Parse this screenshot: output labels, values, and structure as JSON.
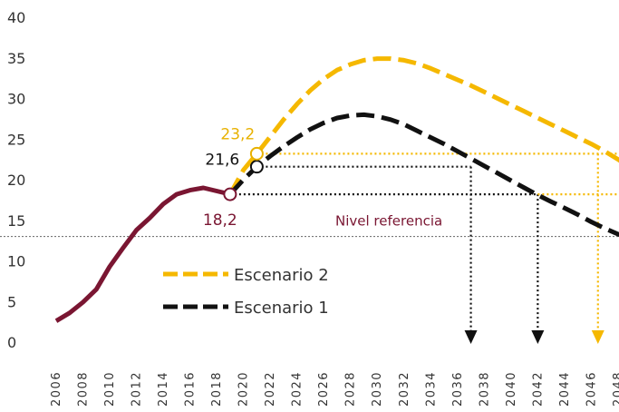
{
  "chart_data": {
    "type": "line",
    "title": "",
    "xlabel": "",
    "ylabel": "",
    "xlim": [
      2006,
      2049
    ],
    "ylim": [
      0,
      40
    ],
    "y_ticks": [
      "0",
      "5",
      "10",
      "15",
      "20",
      "25",
      "30",
      "35",
      "40"
    ],
    "x_ticks": [
      "2006",
      "2008",
      "2010",
      "2012",
      "2014",
      "2016",
      "2018",
      "2020",
      "2022",
      "2024",
      "2026",
      "2028",
      "2030",
      "2032",
      "2034",
      "2036",
      "2038",
      "2040",
      "2042",
      "2044",
      "2046",
      "2048"
    ],
    "grid": false,
    "legend_position": "lower-left",
    "series": [
      {
        "key": "historico",
        "style": "solid",
        "color": "#7a1632",
        "x": [
          2006,
          2007,
          2008,
          2009,
          2010,
          2011,
          2012,
          2013,
          2014,
          2015,
          2016,
          2017,
          2018,
          2019
        ],
        "values": [
          2.6,
          3.6,
          4.9,
          6.5,
          9.3,
          11.6,
          13.8,
          15.3,
          17.0,
          18.2,
          18.7,
          19.0,
          18.6,
          18.2
        ]
      },
      {
        "key": "escenario2",
        "name": "Escenario 2",
        "style": "dashed",
        "color": "#f5b800",
        "x": [
          2019,
          2020,
          2021,
          2022,
          2023,
          2024,
          2025,
          2026,
          2027,
          2028,
          2029,
          2030,
          2031,
          2032,
          2033,
          2034,
          2035,
          2036,
          2037,
          2038,
          2039,
          2040,
          2041,
          2042,
          2043,
          2044,
          2045,
          2046,
          2047,
          2048,
          2049
        ],
        "values": [
          18.2,
          21.2,
          23.2,
          25.3,
          27.4,
          29.3,
          31.0,
          32.4,
          33.5,
          34.2,
          34.7,
          34.9,
          34.9,
          34.7,
          34.3,
          33.7,
          33.0,
          32.3,
          31.6,
          30.8,
          30.0,
          29.2,
          28.4,
          27.6,
          26.8,
          26.0,
          25.2,
          24.4,
          23.5,
          22.5,
          21.4
        ]
      },
      {
        "key": "escenario1",
        "name": "Escenario 1",
        "style": "dashed",
        "color": "#111111",
        "x": [
          2019,
          2020,
          2021,
          2022,
          2023,
          2024,
          2025,
          2026,
          2027,
          2028,
          2029,
          2030,
          2031,
          2032,
          2033,
          2034,
          2035,
          2036,
          2037,
          2038,
          2039,
          2040,
          2041,
          2042,
          2043,
          2044,
          2045,
          2046,
          2047,
          2048,
          2049
        ],
        "values": [
          18.2,
          20.0,
          21.6,
          22.9,
          24.1,
          25.2,
          26.2,
          27.0,
          27.6,
          27.9,
          28.0,
          27.8,
          27.4,
          26.8,
          26.0,
          25.2,
          24.4,
          23.5,
          22.6,
          21.7,
          20.8,
          19.9,
          19.0,
          18.1,
          17.3,
          16.5,
          15.7,
          14.8,
          14.0,
          13.3,
          12.6
        ]
      }
    ],
    "reference_line": {
      "label": "Nivel referencia",
      "value": 13,
      "color": "#7a1632"
    },
    "markers": [
      {
        "label": "18,2",
        "x": 2019,
        "y": 18.2,
        "color": "#7a1632"
      },
      {
        "label": "21,6",
        "x": 2021,
        "y": 21.6,
        "color": "#111111"
      },
      {
        "label": "23,2",
        "x": 2021,
        "y": 23.2,
        "color": "#e8b100"
      }
    ],
    "guides": [
      {
        "y": 23.2,
        "x_from": 2021,
        "x_to": 2049,
        "drop_x": 2046.5,
        "color": "#f5b800"
      },
      {
        "y": 21.6,
        "x_from": 2021,
        "x_to": 2037,
        "drop_x": 2037,
        "color": "#111111"
      },
      {
        "y": 18.2,
        "x_from": 2019,
        "x_to": 2042,
        "drop_x": 2042,
        "color": "#111111"
      },
      {
        "y": 18.2,
        "x_from": 2042,
        "x_to": 2049,
        "drop_x": null,
        "color": "#f5b800"
      }
    ]
  }
}
